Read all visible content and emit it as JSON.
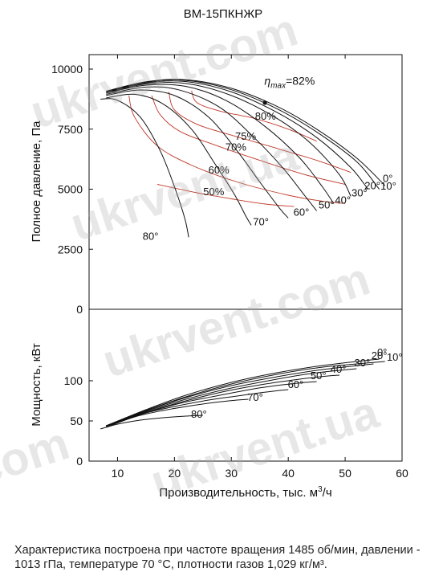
{
  "chart_data": [
    {
      "type": "line",
      "title": "ВМ-15ПКНЖР",
      "ylabel": "Полное давление, Па",
      "ylim": [
        0,
        10000
      ],
      "yticks": [
        "0",
        "2500",
        "5000",
        "7500",
        "10000"
      ],
      "eta_max_label": "=82%",
      "eta_label_symbol": "η",
      "eta_label_subscript": "max",
      "series": [
        {
          "name": "0°",
          "label_pos": [
            57.5,
            5300
          ],
          "points": [
            [
              8,
              9080
            ],
            [
              15,
              9470
            ],
            [
              22,
              9560
            ],
            [
              30,
              9200
            ],
            [
              38,
              8450
            ],
            [
              45,
              7500
            ],
            [
              52,
              6300
            ],
            [
              57,
              5150
            ]
          ]
        },
        {
          "name": "10°",
          "label_pos": [
            57.6,
            4980
          ],
          "points": [
            [
              8,
              9060
            ],
            [
              15,
              9450
            ],
            [
              22,
              9530
            ],
            [
              30,
              9140
            ],
            [
              38,
              8350
            ],
            [
              45,
              7380
            ],
            [
              52,
              6150
            ],
            [
              56,
              5000
            ]
          ]
        },
        {
          "name": "20°",
          "label_pos": [
            54.8,
            5000
          ],
          "points": [
            [
              8,
              9050
            ],
            [
              15,
              9420
            ],
            [
              22,
              9480
            ],
            [
              30,
              9050
            ],
            [
              38,
              8200
            ],
            [
              45,
              7150
            ],
            [
              51,
              5900
            ],
            [
              54,
              5000
            ]
          ]
        },
        {
          "name": "30°",
          "label_pos": [
            52.5,
            4700
          ],
          "points": [
            [
              8,
              9030
            ],
            [
              15,
              9380
            ],
            [
              22,
              9400
            ],
            [
              30,
              8900
            ],
            [
              38,
              7950
            ],
            [
              44,
              6900
            ],
            [
              49,
              5600
            ],
            [
              51,
              4700
            ]
          ]
        },
        {
          "name": "40°",
          "label_pos": [
            49.6,
            4400
          ],
          "points": [
            [
              8,
              9000
            ],
            [
              15,
              9330
            ],
            [
              22,
              9280
            ],
            [
              29,
              8700
            ],
            [
              36,
              7600
            ],
            [
              42,
              6300
            ],
            [
              46,
              5100
            ],
            [
              48,
              4400
            ]
          ]
        },
        {
          "name": "50°",
          "label_pos": [
            46.7,
            4200
          ],
          "points": [
            [
              8,
              8950
            ],
            [
              15,
              9250
            ],
            [
              21,
              9120
            ],
            [
              28,
              8400
            ],
            [
              34,
              7150
            ],
            [
              39,
              5900
            ],
            [
              43,
              4700
            ],
            [
              45,
              4100
            ]
          ]
        },
        {
          "name": "60°",
          "label_pos": [
            42.3,
            3900
          ],
          "points": [
            [
              8,
              8900
            ],
            [
              14,
              9130
            ],
            [
              20,
              8900
            ],
            [
              26,
              8000
            ],
            [
              31,
              6600
            ],
            [
              35,
              5300
            ],
            [
              38.5,
              4200
            ],
            [
              40,
              3800
            ]
          ]
        },
        {
          "name": "70°",
          "label_pos": [
            35.2,
            3500
          ],
          "points": [
            [
              8,
              8800
            ],
            [
              13,
              8950
            ],
            [
              18,
              8550
            ],
            [
              23,
              7500
            ],
            [
              27,
              6100
            ],
            [
              30.5,
              4800
            ],
            [
              32.5,
              3900
            ],
            [
              33.5,
              3500
            ]
          ]
        },
        {
          "name": "80°",
          "label_pos": [
            15.8,
            2900
          ],
          "points": [
            [
              7,
              8750
            ],
            [
              10,
              8700
            ],
            [
              14,
              8000
            ],
            [
              17.5,
              6600
            ],
            [
              20,
              5100
            ],
            [
              21.8,
              3800
            ],
            [
              22.5,
              3000
            ]
          ]
        }
      ],
      "efficiency_contours": [
        {
          "name": "50%",
          "label_pos": [
            26.9,
            4750
          ],
          "points": [
            [
              17,
              5200
            ],
            [
              24,
              4850
            ],
            [
              30,
              4600
            ],
            [
              36,
              4380
            ],
            [
              41,
              4280
            ]
          ]
        },
        {
          "name": "60%",
          "label_pos": [
            27.8,
            5650
          ],
          "points": [
            [
              12,
              8900
            ],
            [
              13,
              8000
            ],
            [
              17,
              6800
            ],
            [
              23,
              6000
            ],
            [
              31,
              5300
            ],
            [
              40,
              4750
            ],
            [
              46,
              4500
            ],
            [
              50,
              4400
            ]
          ]
        },
        {
          "name": "70%",
          "label_pos": [
            30.8,
            6600
          ],
          "points": [
            [
              16,
              8900
            ],
            [
              17.5,
              8100
            ],
            [
              21,
              7400
            ],
            [
              27,
              6850
            ],
            [
              35,
              6200
            ],
            [
              43,
              5600
            ],
            [
              50,
              5200
            ]
          ]
        },
        {
          "name": "75%",
          "label_pos": [
            32.5,
            7050
          ],
          "points": [
            [
              19,
              9050
            ],
            [
              20,
              8300
            ],
            [
              24,
              7700
            ],
            [
              30,
              7250
            ],
            [
              38,
              6700
            ],
            [
              45,
              6200
            ],
            [
              51,
              5700
            ]
          ]
        },
        {
          "name": "80%",
          "label_pos": [
            36.0,
            7900
          ],
          "points": [
            [
              23,
              9100
            ],
            [
              24,
              8600
            ],
            [
              28,
              8250
            ],
            [
              34,
              7950
            ],
            [
              40,
              7500
            ],
            [
              45,
              7000
            ]
          ]
        }
      ],
      "eta_max_point": [
        35.9,
        8600
      ]
    },
    {
      "type": "line",
      "ylabel": "Мощность, кВт",
      "xlabel": "Производительность, тыс. м³/ч",
      "xlabel_main": "Производительность, тыс. м",
      "xlabel_sup": "3",
      "xlabel_tail": "/ч",
      "xlim": [
        5,
        60
      ],
      "ylim": [
        0,
        150
      ],
      "xticks": [
        "10",
        "20",
        "30",
        "40",
        "50",
        "60"
      ],
      "yticks": [
        "0",
        "50",
        "100"
      ],
      "series": [
        {
          "name": "0°",
          "label_pos": [
            56.5,
            131
          ],
          "points": [
            [
              8,
              44
            ],
            [
              15,
              64
            ],
            [
              22,
              82
            ],
            [
              30,
              98
            ],
            [
              38,
              110
            ],
            [
              45,
              118
            ],
            [
              52,
              124
            ],
            [
              56,
              127
            ]
          ]
        },
        {
          "name": "10°",
          "label_pos": [
            58.7,
            125
          ],
          "points": [
            [
              8,
              44
            ],
            [
              15,
              63
            ],
            [
              22,
              80
            ],
            [
              30,
              96
            ],
            [
              38,
              108
            ],
            [
              45,
              116
            ],
            [
              52,
              121
            ],
            [
              57,
              124
            ]
          ]
        },
        {
          "name": "20°",
          "label_pos": [
            56.0,
            127
          ],
          "points": [
            [
              8,
              44
            ],
            [
              15,
              63
            ],
            [
              22,
              79
            ],
            [
              30,
              94
            ],
            [
              38,
              105
            ],
            [
              45,
              113
            ],
            [
              51,
              118
            ],
            [
              55,
              121
            ]
          ]
        },
        {
          "name": "30°",
          "label_pos": [
            53.0,
            118
          ],
          "points": [
            [
              8,
              44
            ],
            [
              15,
              62
            ],
            [
              22,
              77
            ],
            [
              30,
              91
            ],
            [
              38,
              102
            ],
            [
              44,
              109
            ],
            [
              49,
              113
            ],
            [
              52,
              115
            ]
          ]
        },
        {
          "name": "40°",
          "label_pos": [
            48.8,
            110
          ],
          "points": [
            [
              8,
              44
            ],
            [
              15,
              61
            ],
            [
              22,
              75
            ],
            [
              29,
              87
            ],
            [
              36,
              96
            ],
            [
              42,
              102
            ],
            [
              47,
              106
            ],
            [
              49,
              107
            ]
          ]
        },
        {
          "name": "50°",
          "label_pos": [
            45.3,
            102
          ],
          "points": [
            [
              8,
              44
            ],
            [
              15,
              60
            ],
            [
              21,
              72
            ],
            [
              28,
              82
            ],
            [
              34,
              90
            ],
            [
              39,
              95
            ],
            [
              43,
              98
            ],
            [
              45,
              99
            ]
          ]
        },
        {
          "name": "60°",
          "label_pos": [
            41.3,
            91
          ],
          "points": [
            [
              8,
              43
            ],
            [
              14,
              58
            ],
            [
              20,
              68
            ],
            [
              26,
              76
            ],
            [
              31,
              81
            ],
            [
              35,
              85
            ],
            [
              38.5,
              88
            ],
            [
              40,
              89
            ]
          ]
        },
        {
          "name": "70°",
          "label_pos": [
            34.2,
            75
          ],
          "points": [
            [
              8,
              42
            ],
            [
              13,
              55
            ],
            [
              18,
              63
            ],
            [
              23,
              69
            ],
            [
              27,
              73
            ],
            [
              31,
              76
            ],
            [
              33,
              77
            ]
          ]
        },
        {
          "name": "80°",
          "label_pos": [
            24.3,
            54
          ],
          "points": [
            [
              7,
              40
            ],
            [
              10,
              46
            ],
            [
              14,
              51
            ],
            [
              18,
              54
            ],
            [
              22,
              56
            ],
            [
              25,
              57
            ]
          ]
        }
      ]
    }
  ],
  "footnote": "Характеристика построена при частоте вращения 1485 об/мин, давлении - 1013 гПа, температуре 70 °С, плотности газов 1,029 кг/м³."
}
